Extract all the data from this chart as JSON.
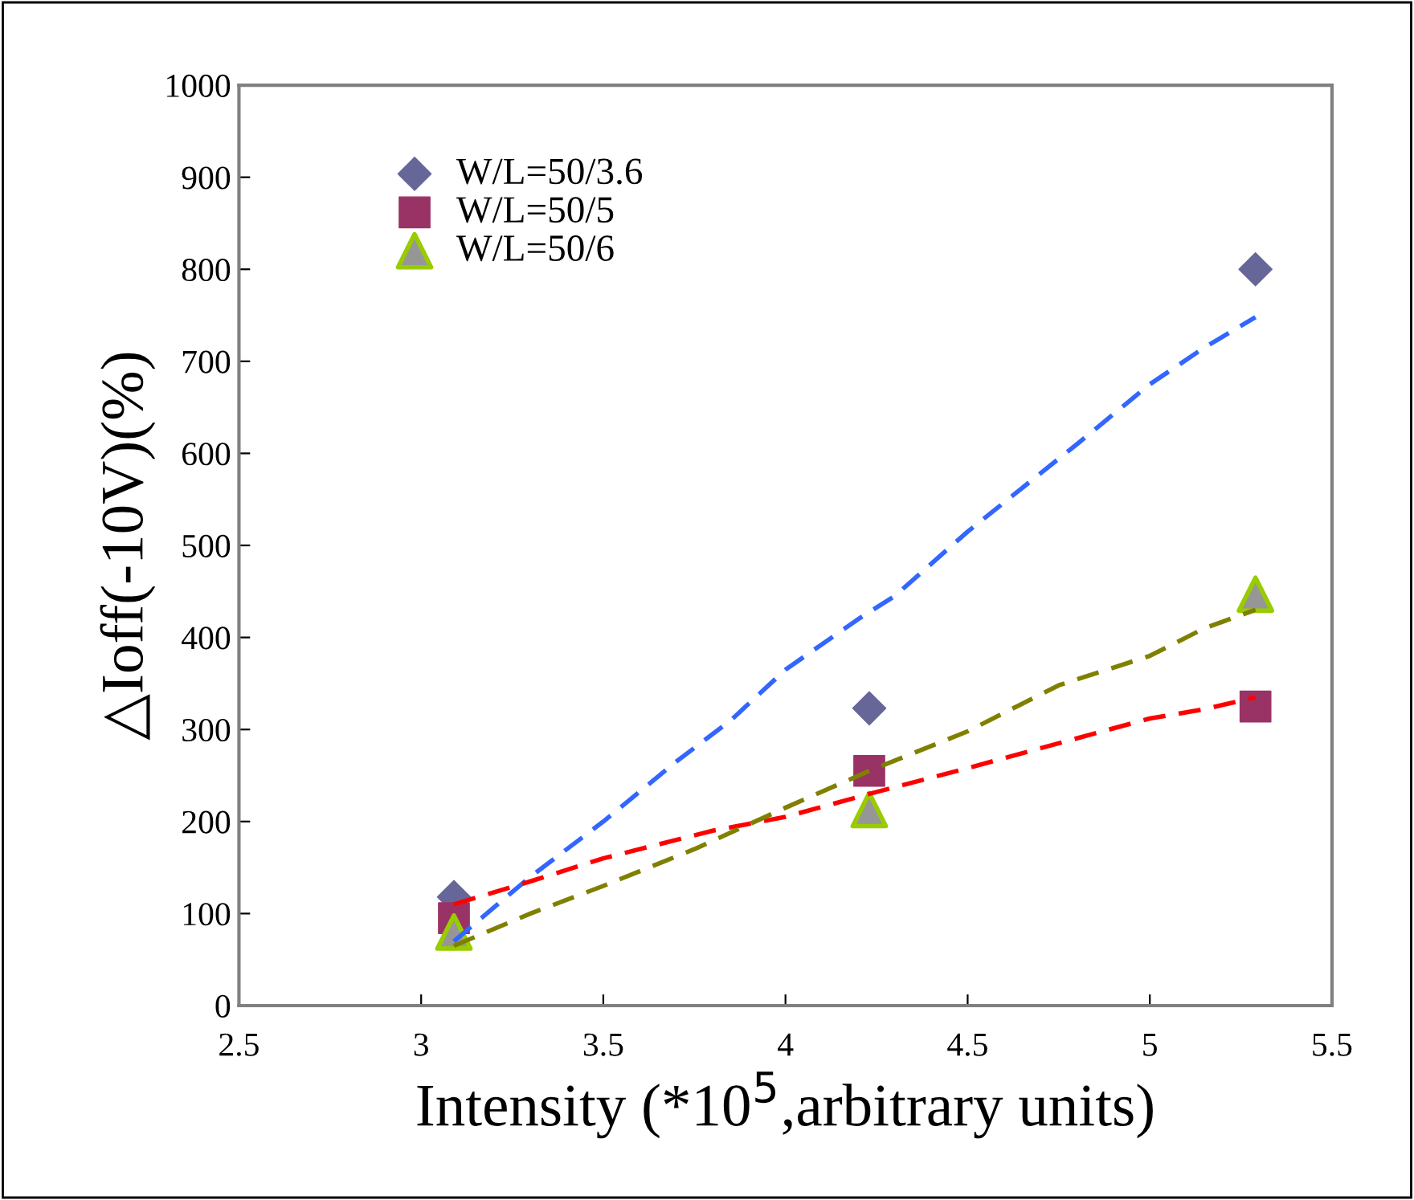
{
  "chart_data": {
    "type": "scatter",
    "xlabel": "Intensity (*10$^{5}$,arbitrary units)",
    "ylabel": "△Ioff(-10V)(%)",
    "x": [
      3.09,
      4.23,
      5.29
    ],
    "xlim": [
      2.5,
      5.5
    ],
    "xticks": [
      2.5,
      3,
      3.5,
      4,
      4.5,
      5,
      5.5
    ],
    "ylim": [
      0,
      1000
    ],
    "yticks": [
      0,
      100,
      200,
      300,
      400,
      500,
      600,
      700,
      800,
      900,
      1000
    ],
    "grid": false,
    "legend": "top left",
    "series": [
      {
        "name": "W/L=50/3.6",
        "color": "#666699",
        "marker": "diamond",
        "values": [
          118,
          323,
          800
        ]
      },
      {
        "name": "W/L=50/5",
        "color": "#993366",
        "marker": "square",
        "values": [
          95,
          255,
          325
        ]
      },
      {
        "name": "W/L=50/6",
        "color": "#969696",
        "marker": "triangle",
        "values": [
          80,
          213,
          447
        ]
      },
      {
        "type": "line",
        "color": "#3366ff",
        "line_style": "dashed",
        "marker": "none",
        "x": [
          3.09,
          3.3,
          3.5,
          3.7,
          3.85,
          4.0,
          4.2,
          4.3,
          4.5,
          4.8,
          5.0,
          5.15,
          5.29
        ],
        "values": [
          70,
          140,
          200,
          265,
          310,
          365,
          420,
          445,
          515,
          610,
          675,
          715,
          748
        ]
      },
      {
        "type": "line",
        "color": "#ff0000",
        "line_style": "dashed",
        "marker": "none",
        "x": [
          3.09,
          3.3,
          3.5,
          3.8,
          4.0,
          4.23,
          4.5,
          4.75,
          5.0,
          5.15,
          5.29
        ],
        "values": [
          110,
          135,
          160,
          190,
          205,
          230,
          258,
          285,
          312,
          322,
          335
        ]
      },
      {
        "type": "line",
        "color": "#808000",
        "line_style": "dashed",
        "marker": "none",
        "x": [
          3.09,
          3.3,
          3.5,
          3.75,
          4.0,
          4.23,
          4.5,
          4.75,
          5.0,
          5.15,
          5.29
        ],
        "values": [
          65,
          100,
          130,
          170,
          215,
          255,
          298,
          348,
          380,
          410,
          430
        ]
      }
    ]
  }
}
